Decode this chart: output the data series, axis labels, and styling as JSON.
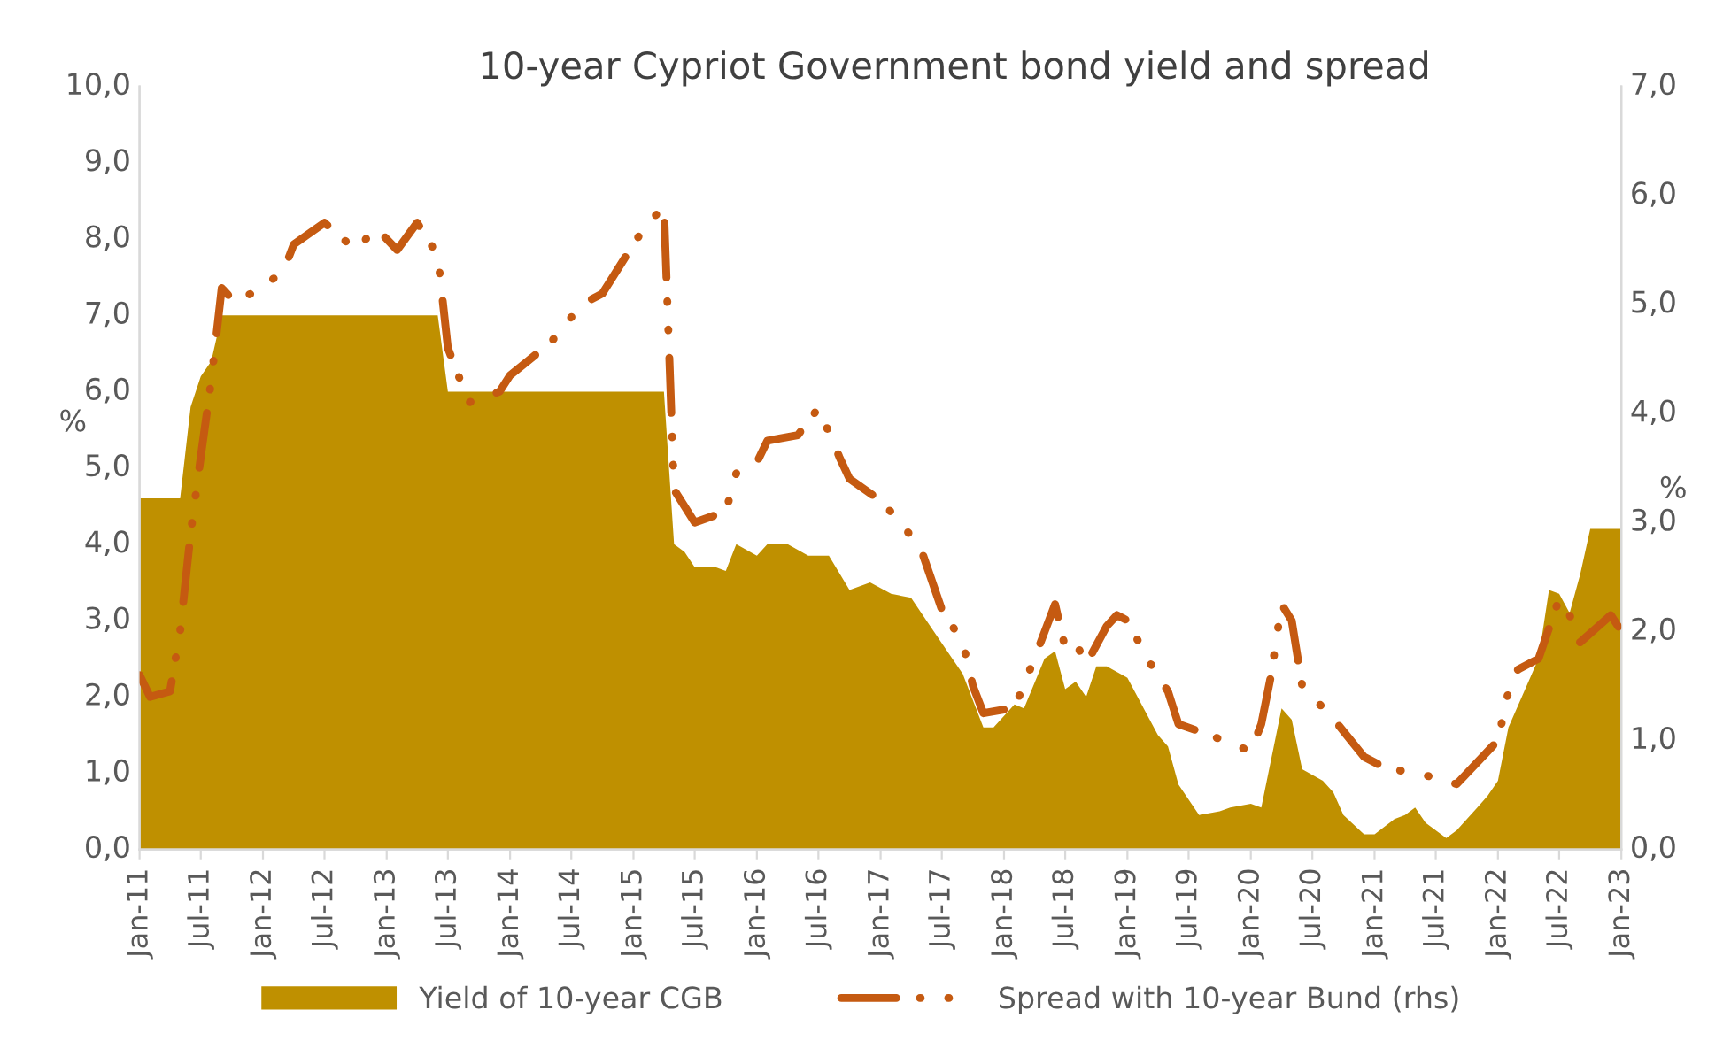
{
  "chart_data": {
    "type": "area",
    "title": "10-year Cypriot Government bond yield and spread",
    "ylabel": "%",
    "y2label": "%",
    "series": [
      {
        "name": "Yield of 10-year CGB",
        "color": "#bf9000",
        "x": [
          "2011-01",
          "2011-05",
          "2011-06",
          "2011-07",
          "2011-08",
          "2011-09",
          "2013-06",
          "2013-07",
          "2015-04",
          "2015-05",
          "2015-06",
          "2015-07",
          "2015-09",
          "2015-10",
          "2015-11",
          "2016-01",
          "2016-02",
          "2016-04",
          "2016-06",
          "2016-08",
          "2016-10",
          "2016-12",
          "2017-02",
          "2017-04",
          "2017-06",
          "2017-08",
          "2017-09",
          "2017-11",
          "2017-12",
          "2018-02",
          "2018-03",
          "2018-05",
          "2018-06",
          "2018-07",
          "2018-08",
          "2018-09",
          "2018-10",
          "2018-11",
          "2019-01",
          "2019-04",
          "2019-05",
          "2019-06",
          "2019-08",
          "2019-10",
          "2019-11",
          "2020-01",
          "2020-02",
          "2020-04",
          "2020-05",
          "2020-06",
          "2020-08",
          "2020-09",
          "2020-10",
          "2020-12",
          "2021-01",
          "2021-03",
          "2021-04",
          "2021-05",
          "2021-06",
          "2021-08",
          "2021-09",
          "2021-11",
          "2021-12",
          "2022-01",
          "2022-02",
          "2022-05",
          "2022-06",
          "2022-07",
          "2022-08",
          "2022-09",
          "2022-10",
          "2023-01"
        ],
        "values": [
          4.6,
          4.6,
          5.8,
          6.2,
          6.4,
          7.0,
          7.0,
          6.0,
          6.0,
          4.0,
          3.9,
          3.7,
          3.7,
          3.65,
          4.0,
          3.85,
          4.0,
          4.0,
          3.85,
          3.85,
          3.4,
          3.5,
          3.35,
          3.3,
          2.9,
          2.5,
          2.3,
          1.6,
          1.6,
          1.9,
          1.85,
          2.5,
          2.6,
          2.1,
          2.2,
          2.0,
          2.4,
          2.4,
          2.25,
          1.5,
          1.35,
          0.85,
          0.45,
          0.5,
          0.55,
          0.6,
          0.55,
          1.85,
          1.7,
          1.05,
          0.9,
          0.75,
          0.45,
          0.2,
          0.2,
          0.4,
          0.45,
          0.55,
          0.35,
          0.15,
          0.25,
          0.55,
          0.7,
          0.9,
          1.6,
          2.5,
          3.4,
          3.35,
          3.1,
          3.6,
          4.2,
          4.2
        ]
      },
      {
        "name": "Spread with 10-year Bund (rhs)",
        "type": "line",
        "axis": "y2",
        "color": "#c55a11",
        "line_style": "dashed",
        "x": [
          "2011-01",
          "2011-02",
          "2011-04",
          "2011-05",
          "2011-06",
          "2011-07",
          "2011-08",
          "2011-09",
          "2011-10",
          "2011-12",
          "2012-03",
          "2012-04",
          "2012-07",
          "2012-10",
          "2012-12",
          "2013-02",
          "2013-04",
          "2013-06",
          "2013-07",
          "2013-09",
          "2013-12",
          "2014-01",
          "2014-05",
          "2014-08",
          "2014-10",
          "2014-12",
          "2015-02",
          "2015-04",
          "2015-05",
          "2015-07",
          "2015-10",
          "2015-11",
          "2016-01",
          "2016-02",
          "2016-05",
          "2016-07",
          "2016-09",
          "2016-10",
          "2017-01",
          "2017-03",
          "2017-05",
          "2017-07",
          "2017-09",
          "2017-10",
          "2017-11",
          "2018-02",
          "2018-04",
          "2018-06",
          "2018-07",
          "2018-08",
          "2018-09",
          "2018-11",
          "2018-12",
          "2019-01",
          "2019-03",
          "2019-05",
          "2019-06",
          "2019-09",
          "2020-01",
          "2020-02",
          "2020-03",
          "2020-04",
          "2020-05",
          "2020-06",
          "2020-09",
          "2020-12",
          "2021-02",
          "2021-06",
          "2021-09",
          "2021-11",
          "2022-01",
          "2022-02",
          "2022-03",
          "2022-05",
          "2022-07",
          "2022-08",
          "2022-09",
          "2022-12",
          "2023-01"
        ],
        "values": [
          1.6,
          1.4,
          1.45,
          2.0,
          2.9,
          3.6,
          4.3,
          5.15,
          5.05,
          5.1,
          5.3,
          5.55,
          5.75,
          5.5,
          5.7,
          5.5,
          5.75,
          5.45,
          4.6,
          4.1,
          4.2,
          4.35,
          4.65,
          5.0,
          5.1,
          5.4,
          5.7,
          5.9,
          3.3,
          3.0,
          3.1,
          3.45,
          3.55,
          3.75,
          3.8,
          4.05,
          3.6,
          3.4,
          3.2,
          3.0,
          2.75,
          2.2,
          1.9,
          1.5,
          1.25,
          1.3,
          1.75,
          2.25,
          1.85,
          1.9,
          1.7,
          2.05,
          2.15,
          2.1,
          1.75,
          1.45,
          1.15,
          1.05,
          0.9,
          1.15,
          1.6,
          2.25,
          2.1,
          1.5,
          1.2,
          0.85,
          0.75,
          0.68,
          0.6,
          0.8,
          1.0,
          1.45,
          1.65,
          1.75,
          2.3,
          2.15,
          1.9,
          2.15,
          2.0
        ]
      }
    ],
    "xlim": [
      "2011-01",
      "2023-01"
    ],
    "xticks": [
      {
        "value": "2011-01",
        "label": "Jan-11"
      },
      {
        "value": "2011-07",
        "label": "Jul-11"
      },
      {
        "value": "2012-01",
        "label": "Jan-12"
      },
      {
        "value": "2012-07",
        "label": "Jul-12"
      },
      {
        "value": "2013-01",
        "label": "Jan-13"
      },
      {
        "value": "2013-07",
        "label": "Jul-13"
      },
      {
        "value": "2014-01",
        "label": "Jan-14"
      },
      {
        "value": "2014-07",
        "label": "Jul-14"
      },
      {
        "value": "2015-01",
        "label": "Jan-15"
      },
      {
        "value": "2015-07",
        "label": "Jul-15"
      },
      {
        "value": "2016-01",
        "label": "Jan-16"
      },
      {
        "value": "2016-07",
        "label": "Jul-16"
      },
      {
        "value": "2017-01",
        "label": "Jan-17"
      },
      {
        "value": "2017-07",
        "label": "Jul-17"
      },
      {
        "value": "2018-01",
        "label": "Jan-18"
      },
      {
        "value": "2018-07",
        "label": "Jul-18"
      },
      {
        "value": "2019-01",
        "label": "Jan-19"
      },
      {
        "value": "2019-07",
        "label": "Jul-19"
      },
      {
        "value": "2020-01",
        "label": "Jan-20"
      },
      {
        "value": "2020-07",
        "label": "Jul-20"
      },
      {
        "value": "2021-01",
        "label": "Jan-21"
      },
      {
        "value": "2021-07",
        "label": "Jul-21"
      },
      {
        "value": "2022-01",
        "label": "Jan-22"
      },
      {
        "value": "2022-07",
        "label": "Jul-22"
      },
      {
        "value": "2023-01",
        "label": "Jan-23"
      }
    ],
    "ylim": [
      0,
      10
    ],
    "yticks": [
      {
        "value": 0,
        "label": "0,0"
      },
      {
        "value": 1,
        "label": "1,0"
      },
      {
        "value": 2,
        "label": "2,0"
      },
      {
        "value": 3,
        "label": "3,0"
      },
      {
        "value": 4,
        "label": "4,0"
      },
      {
        "value": 5,
        "label": "5,0"
      },
      {
        "value": 6,
        "label": "6,0"
      },
      {
        "value": 7,
        "label": "7,0"
      },
      {
        "value": 8,
        "label": "8,0"
      },
      {
        "value": 9,
        "label": "9,0"
      },
      {
        "value": 10,
        "label": "10,0"
      }
    ],
    "y2lim": [
      0,
      7
    ],
    "y2ticks": [
      {
        "value": 0,
        "label": "0,0"
      },
      {
        "value": 1,
        "label": "1,0"
      },
      {
        "value": 2,
        "label": "2,0"
      },
      {
        "value": 3,
        "label": "3,0"
      },
      {
        "value": 4,
        "label": "4,0"
      },
      {
        "value": 5,
        "label": "5,0"
      },
      {
        "value": 6,
        "label": "6,0"
      },
      {
        "value": 7,
        "label": "7,0"
      }
    ],
    "legend": "bottom",
    "grid": false
  }
}
